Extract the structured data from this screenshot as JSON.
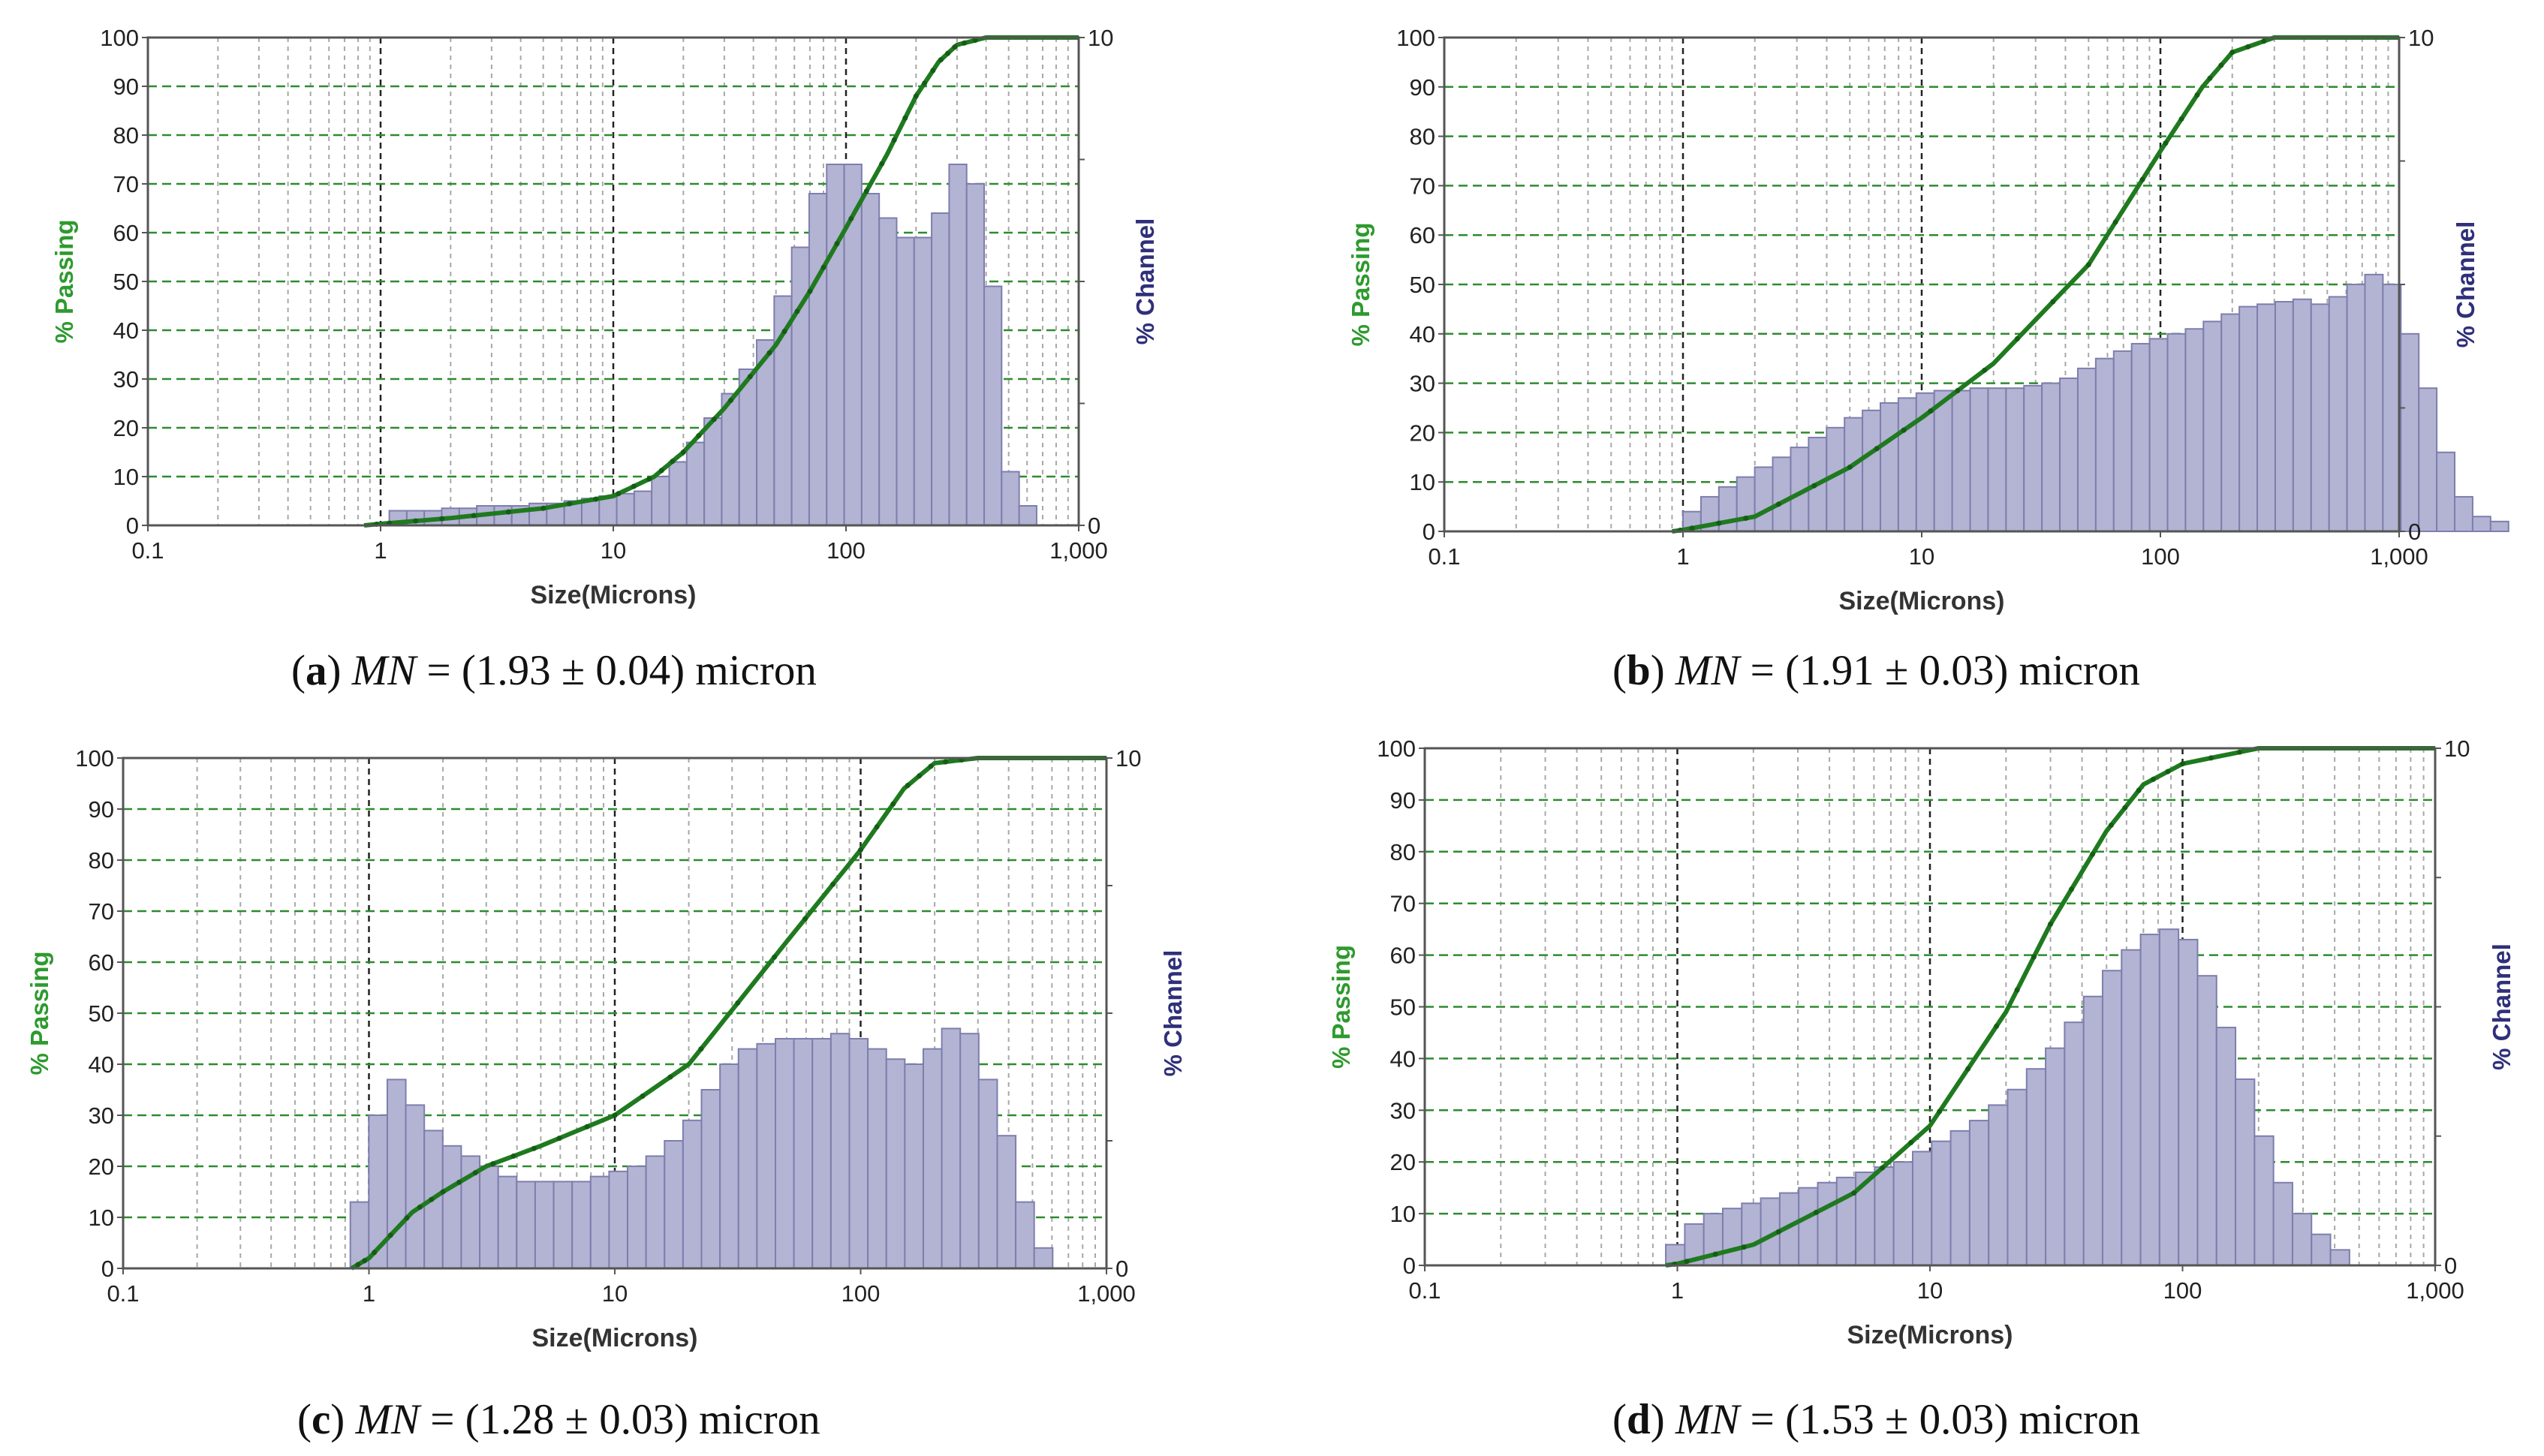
{
  "colors": {
    "passing_line": "#1f7a1f",
    "bar_fill": "#b3b3d3",
    "bar_stroke": "#7e7eae",
    "grid_green": "#2e8b2e",
    "grid_gray": "#a8a8a8",
    "axis": "#555555",
    "passing_title": "#2e9a2e",
    "channel_title": "#2f2f7a"
  },
  "chart_data": [
    {
      "id": "a",
      "type": "bar+line",
      "caption": {
        "letter": "a",
        "prefix": "(",
        "suffix": ")",
        "var": "MN",
        "text": " = (1.93 ± 0.04) micron"
      },
      "xlabel": "Size(Microns)",
      "ylabel_left": "% Passing",
      "ylabel_right": "% Channel",
      "xscale": "log",
      "xlim": [
        0.1,
        1000
      ],
      "x_ticks": [
        "0.1",
        "1",
        "10",
        "100",
        "1,000"
      ],
      "ylim_left": [
        0,
        100
      ],
      "y_ticks_left": [
        "0",
        "10",
        "20",
        "30",
        "40",
        "50",
        "60",
        "70",
        "80",
        "90",
        "100"
      ],
      "ylim_right": [
        0,
        10
      ],
      "y_ticks_right": [
        "0",
        "10"
      ],
      "bar_series_name": "% Channel",
      "bar_start_um": 1.09,
      "bar_ratio": 1.189,
      "bar_heights_percent_scale": [
        3,
        3,
        3,
        3.5,
        3.5,
        4,
        4,
        4,
        4.5,
        4.5,
        5,
        5.5,
        6,
        6.5,
        7,
        10,
        13,
        17,
        22,
        27,
        32,
        38,
        47,
        57,
        68,
        74,
        74,
        68,
        63,
        59,
        59,
        64,
        74,
        70,
        49,
        11,
        4
      ],
      "line_series_name": "% Passing",
      "line_points": [
        [
          0.85,
          0
        ],
        [
          1,
          0.3
        ],
        [
          2,
          1.5
        ],
        [
          5,
          3.5
        ],
        [
          10,
          6
        ],
        [
          15,
          10
        ],
        [
          20,
          15
        ],
        [
          30,
          24
        ],
        [
          50,
          37
        ],
        [
          70,
          48
        ],
        [
          100,
          61
        ],
        [
          150,
          76
        ],
        [
          200,
          88
        ],
        [
          250,
          95
        ],
        [
          300,
          98.5
        ],
        [
          400,
          100
        ],
        [
          1000,
          100
        ]
      ]
    },
    {
      "id": "b",
      "type": "bar+line",
      "caption": {
        "letter": "b",
        "prefix": "(",
        "suffix": ")",
        "var": "MN",
        "text": " = (1.91 ± 0.03) micron"
      },
      "xlabel": "Size(Microns)",
      "ylabel_left": "% Passing",
      "ylabel_right": "% Channel",
      "xscale": "log",
      "xlim": [
        0.1,
        1000
      ],
      "x_ticks": [
        "0.1",
        "1",
        "10",
        "100",
        "1,000"
      ],
      "ylim_left": [
        0,
        100
      ],
      "y_ticks_left": [
        "0",
        "10",
        "20",
        "30",
        "40",
        "50",
        "60",
        "70",
        "80",
        "90",
        "100"
      ],
      "ylim_right": [
        0,
        10
      ],
      "y_ticks_right": [
        "0",
        "10"
      ],
      "bar_series_name": "% Channel",
      "bar_start_um": 1.0,
      "bar_ratio": 1.189,
      "bar_heights_percent_scale": [
        4,
        7,
        9,
        11,
        13,
        15,
        17,
        19,
        21,
        23,
        24.5,
        26,
        27,
        28,
        28.5,
        28.5,
        29,
        29,
        29,
        29.5,
        30,
        31,
        33,
        35,
        36.5,
        38,
        39,
        40,
        41,
        42.5,
        44,
        45.5,
        46,
        46.5,
        47,
        46,
        47.5,
        50,
        52,
        50,
        40,
        29,
        16,
        7,
        3,
        2
      ],
      "line_series_name": "% Passing",
      "line_points": [
        [
          0.9,
          0
        ],
        [
          1,
          0.3
        ],
        [
          2,
          3
        ],
        [
          5,
          13
        ],
        [
          10,
          23
        ],
        [
          20,
          34
        ],
        [
          50,
          54
        ],
        [
          100,
          77
        ],
        [
          150,
          90
        ],
        [
          200,
          97
        ],
        [
          300,
          100
        ],
        [
          1000,
          100
        ]
      ]
    },
    {
      "id": "c",
      "type": "bar+line",
      "caption": {
        "letter": "c",
        "prefix": "(",
        "suffix": ")",
        "var": "MN",
        "text": " = (1.28 ± 0.03) micron"
      },
      "xlabel": "Size(Microns)",
      "ylabel_left": "% Passing",
      "ylabel_right": "% Channel",
      "xscale": "log",
      "xlim": [
        0.1,
        1000
      ],
      "x_ticks": [
        "0.1",
        "1",
        "10",
        "100",
        "1,000"
      ],
      "ylim_left": [
        0,
        100
      ],
      "y_ticks_left": [
        "0",
        "10",
        "20",
        "30",
        "40",
        "50",
        "60",
        "70",
        "80",
        "90",
        "100"
      ],
      "ylim_right": [
        0,
        10
      ],
      "y_ticks_right": [
        "0",
        "10"
      ],
      "bar_series_name": "% Channel",
      "bar_start_um": 0.84,
      "bar_ratio": 1.189,
      "bar_heights_percent_scale": [
        13,
        30,
        37,
        32,
        27,
        24,
        22,
        20,
        18,
        17,
        17,
        17,
        17,
        18,
        19,
        20,
        22,
        25,
        29,
        35,
        40,
        43,
        44,
        45,
        45,
        45,
        46,
        45,
        43,
        41,
        40,
        43,
        47,
        46,
        37,
        26,
        13,
        4
      ],
      "line_series_name": "% Passing",
      "line_points": [
        [
          0.85,
          0
        ],
        [
          1,
          2
        ],
        [
          1.5,
          11
        ],
        [
          2,
          15
        ],
        [
          3,
          20
        ],
        [
          5,
          24
        ],
        [
          10,
          30
        ],
        [
          20,
          40
        ],
        [
          50,
          64
        ],
        [
          100,
          82
        ],
        [
          150,
          94
        ],
        [
          200,
          99
        ],
        [
          300,
          100
        ],
        [
          1000,
          100
        ]
      ]
    },
    {
      "id": "d",
      "type": "bar+line",
      "caption": {
        "letter": "d",
        "prefix": "(",
        "suffix": ")",
        "var": "MN",
        "text": " = (1.53 ± 0.03) micron"
      },
      "xlabel": "Size(Microns)",
      "ylabel_left": "% Passing",
      "ylabel_right": "% Channel",
      "xscale": "log",
      "xlim": [
        0.1,
        1000
      ],
      "x_ticks": [
        "0.1",
        "1",
        "10",
        "100",
        "1,000"
      ],
      "ylim_left": [
        0,
        100
      ],
      "y_ticks_left": [
        "0",
        "10",
        "20",
        "30",
        "40",
        "50",
        "60",
        "70",
        "80",
        "90",
        "100"
      ],
      "ylim_right": [
        0,
        10
      ],
      "y_ticks_right": [
        "0",
        "10"
      ],
      "bar_series_name": "% Channel",
      "bar_start_um": 0.9,
      "bar_ratio": 1.189,
      "bar_heights_percent_scale": [
        4,
        8,
        10,
        11,
        12,
        13,
        14,
        15,
        16,
        17,
        18,
        19,
        20,
        22,
        24,
        26,
        28,
        31,
        34,
        38,
        42,
        47,
        52,
        57,
        61,
        64,
        65,
        63,
        56,
        46,
        36,
        25,
        16,
        10,
        6,
        3
      ],
      "line_series_name": "% Passing",
      "line_points": [
        [
          0.9,
          0
        ],
        [
          1,
          0.3
        ],
        [
          2,
          4
        ],
        [
          5,
          14
        ],
        [
          10,
          27
        ],
        [
          20,
          49
        ],
        [
          30,
          66
        ],
        [
          50,
          84
        ],
        [
          70,
          93
        ],
        [
          100,
          97
        ],
        [
          200,
          100
        ],
        [
          1000,
          100
        ]
      ]
    }
  ]
}
